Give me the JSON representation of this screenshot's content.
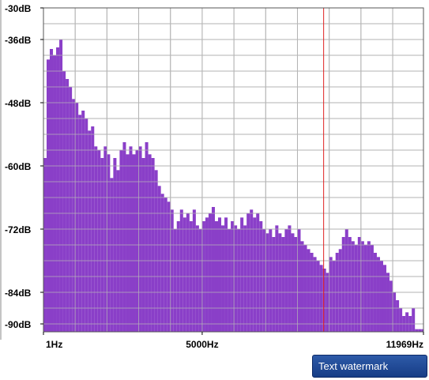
{
  "chart_data": {
    "type": "bar",
    "x": [
      50,
      150,
      250,
      350,
      450,
      550,
      650,
      750,
      850,
      950,
      1050,
      1150,
      1250,
      1350,
      1450,
      1550,
      1650,
      1750,
      1850,
      1950,
      2050,
      2150,
      2250,
      2350,
      2450,
      2550,
      2650,
      2750,
      2850,
      2950,
      3050,
      3150,
      3250,
      3350,
      3450,
      3550,
      3650,
      3750,
      3850,
      3950,
      4050,
      4150,
      4250,
      4350,
      4450,
      4550,
      4650,
      4750,
      4850,
      4950,
      5050,
      5150,
      5250,
      5350,
      5450,
      5550,
      5650,
      5750,
      5850,
      5950,
      6050,
      6150,
      6250,
      6350,
      6450,
      6550,
      6650,
      6750,
      6850,
      6950,
      7050,
      7150,
      7250,
      7350,
      7450,
      7550,
      7650,
      7750,
      7850,
      7950,
      8050,
      8150,
      8250,
      8350,
      8450,
      8550,
      8650,
      8750,
      8850,
      8950,
      9050,
      9150,
      9250,
      9350,
      9450,
      9550,
      9650,
      9750,
      9850,
      9950,
      10050,
      10150,
      10250,
      10350,
      10450,
      10550,
      10650,
      10750,
      10850,
      10950,
      11050,
      11150,
      11250,
      11350,
      11450,
      11550,
      11650,
      11750,
      11850,
      11950
    ],
    "values": [
      -58.5,
      -39.8,
      -37.8,
      -39,
      -37.5,
      -36,
      -42,
      -43.5,
      -45,
      -47.3,
      -48,
      -50.3,
      -49.5,
      -51,
      -53.3,
      -52.5,
      -56.3,
      -57,
      -58.5,
      -56.3,
      -57.8,
      -62.3,
      -58.5,
      -60.8,
      -57,
      -55.5,
      -57.8,
      -56.3,
      -57.8,
      -57,
      -56.3,
      -58.5,
      -55.5,
      -57.8,
      -58.5,
      -60.8,
      -63.8,
      -65.3,
      -66,
      -66.8,
      -68.3,
      -72,
      -70.5,
      -68.3,
      -69.8,
      -69,
      -70.5,
      -68.3,
      -71.3,
      -72,
      -70.5,
      -69.8,
      -69,
      -67.8,
      -70.5,
      -69.8,
      -71.3,
      -69.8,
      -72,
      -70.5,
      -71.3,
      -72,
      -69.8,
      -71.3,
      -69,
      -68.3,
      -69.8,
      -69,
      -70.5,
      -72,
      -72.8,
      -72,
      -73.5,
      -71.3,
      -72.8,
      -73.5,
      -72,
      -71.3,
      -72.8,
      -73.5,
      -72,
      -74.3,
      -75,
      -75.8,
      -76.5,
      -77.3,
      -78,
      -78.8,
      -79.5,
      -80.3,
      -77.3,
      -78,
      -76.5,
      -75.8,
      -73.5,
      -72,
      -73.5,
      -74.3,
      -75,
      -73.5,
      -74.3,
      -75,
      -74.3,
      -75,
      -76.5,
      -77.3,
      -78,
      -78.8,
      -80.3,
      -81.8,
      -84,
      -85.5,
      -87,
      -88.5,
      -87.8,
      -88.5,
      -87,
      -91,
      -91,
      -91
    ],
    "color": "#8a3fc8",
    "xlim": [
      1,
      11969
    ],
    "xticks": [
      {
        "value": 1,
        "label": "1Hz"
      },
      {
        "value": 5000,
        "label": "5000Hz"
      },
      {
        "value": 11969,
        "label": "11969Hz"
      }
    ],
    "minor_xticks": [
      1000,
      2000,
      3000,
      4000,
      5000,
      6000,
      7000,
      8000,
      9000,
      10000,
      11000
    ],
    "ylim": [
      -91.5,
      -30
    ],
    "yticks": [
      {
        "value": -30,
        "label": "-30dB"
      },
      {
        "value": -36,
        "label": "-36dB"
      },
      {
        "value": -48,
        "label": "-48dB"
      },
      {
        "value": -60,
        "label": "-60dB"
      },
      {
        "value": -72,
        "label": "-72dB"
      },
      {
        "value": -84,
        "label": "-84dB"
      },
      {
        "value": -90,
        "label": "-90dB"
      }
    ],
    "minor_yticks": [
      -33,
      -36,
      -39,
      -42,
      -45,
      -48,
      -51,
      -54,
      -57,
      -60,
      -63,
      -66,
      -69,
      -72,
      -75,
      -78,
      -81,
      -84,
      -87,
      -90
    ],
    "cursor": {
      "value": 8825,
      "color": "#e02020"
    },
    "grid": true
  },
  "watermark_button": "Text watermark"
}
